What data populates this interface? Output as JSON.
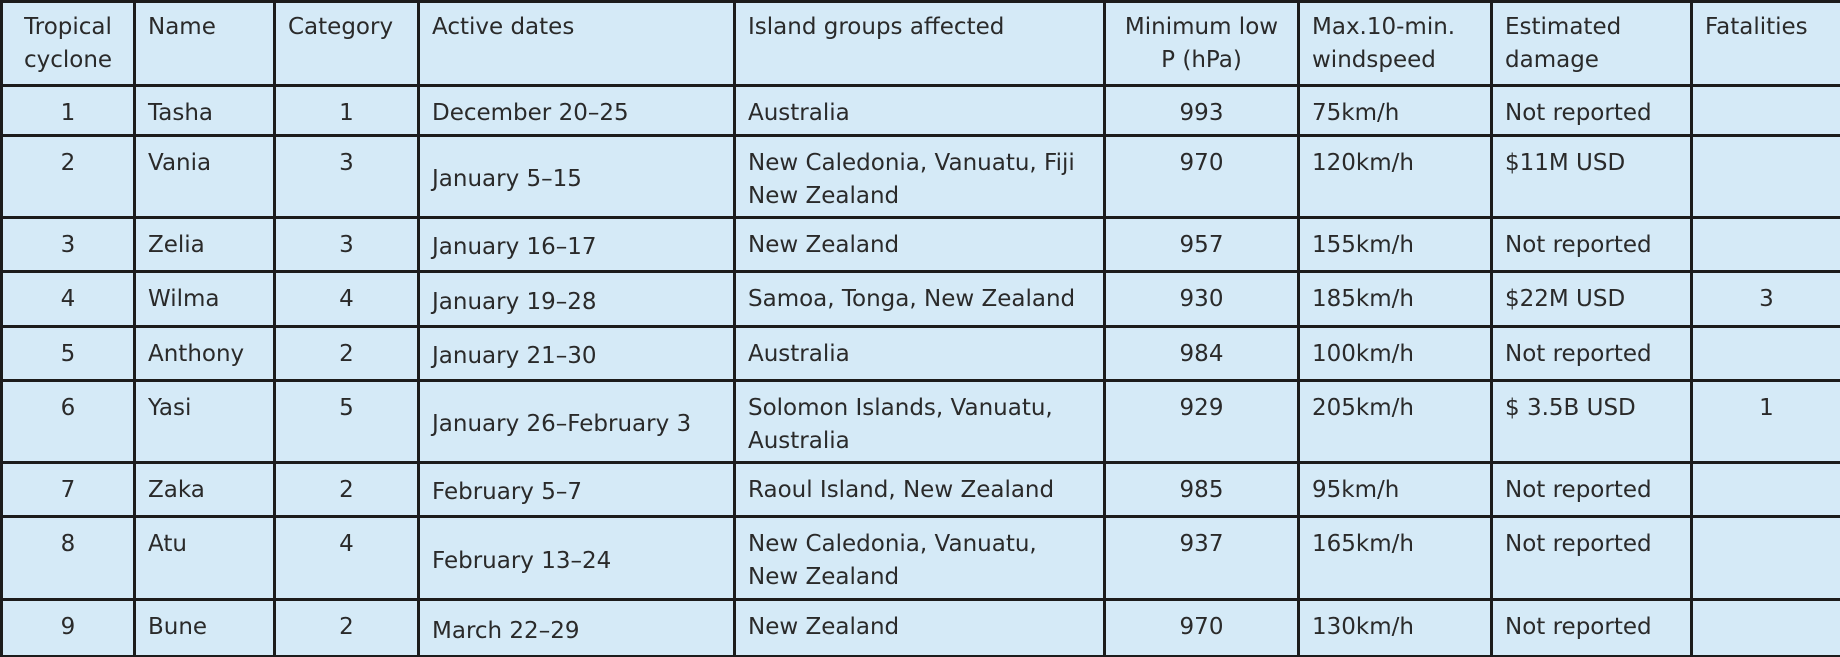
{
  "table": {
    "header": [
      "Tropical cyclone",
      "Name",
      "Category",
      "Active dates",
      "Island groups affected",
      "Minimum low P (hPa)",
      "Max.10-min. windspeed",
      "Estimated damage",
      "Fatalities"
    ],
    "rows": [
      [
        1,
        "Tasha",
        1,
        "December 20–25",
        "Australia",
        993,
        "75km/h",
        "Not reported",
        null
      ],
      [
        2,
        "Vania",
        3,
        "January 5–15",
        "New Caledonia, Vanuatu, Fiji New Zealand",
        970,
        "120km/h",
        "$11M USD",
        null
      ],
      [
        3,
        "Zelia",
        3,
        "January 16–17",
        "New Zealand",
        957,
        "155km/h",
        "Not reported",
        null
      ],
      [
        4,
        "Wilma",
        4,
        "January 19–28",
        "Samoa, Tonga, New Zealand",
        930,
        "185km/h",
        "$22M USD",
        3
      ],
      [
        5,
        "Anthony",
        2,
        "January 21–30",
        "Australia",
        984,
        "100km/h",
        "Not reported",
        null
      ],
      [
        6,
        "Yasi",
        5,
        "January 26–February 3",
        "Solomon Islands, Vanuatu, Australia",
        929,
        "205km/h",
        "$ 3.5B USD",
        1
      ],
      [
        7,
        "Zaka",
        2,
        "February 5–7",
        "Raoul Island, New Zealand",
        985,
        "95km/h",
        "Not reported",
        null
      ],
      [
        8,
        "Atu",
        4,
        "February 13–24",
        "New Caledonia, Vanuatu, New Zealand",
        937,
        "165km/h",
        "Not reported",
        null
      ],
      [
        9,
        "Bune",
        2,
        "March 22–29",
        "New Zealand",
        970,
        "130km/h",
        "Not reported",
        null
      ]
    ]
  }
}
